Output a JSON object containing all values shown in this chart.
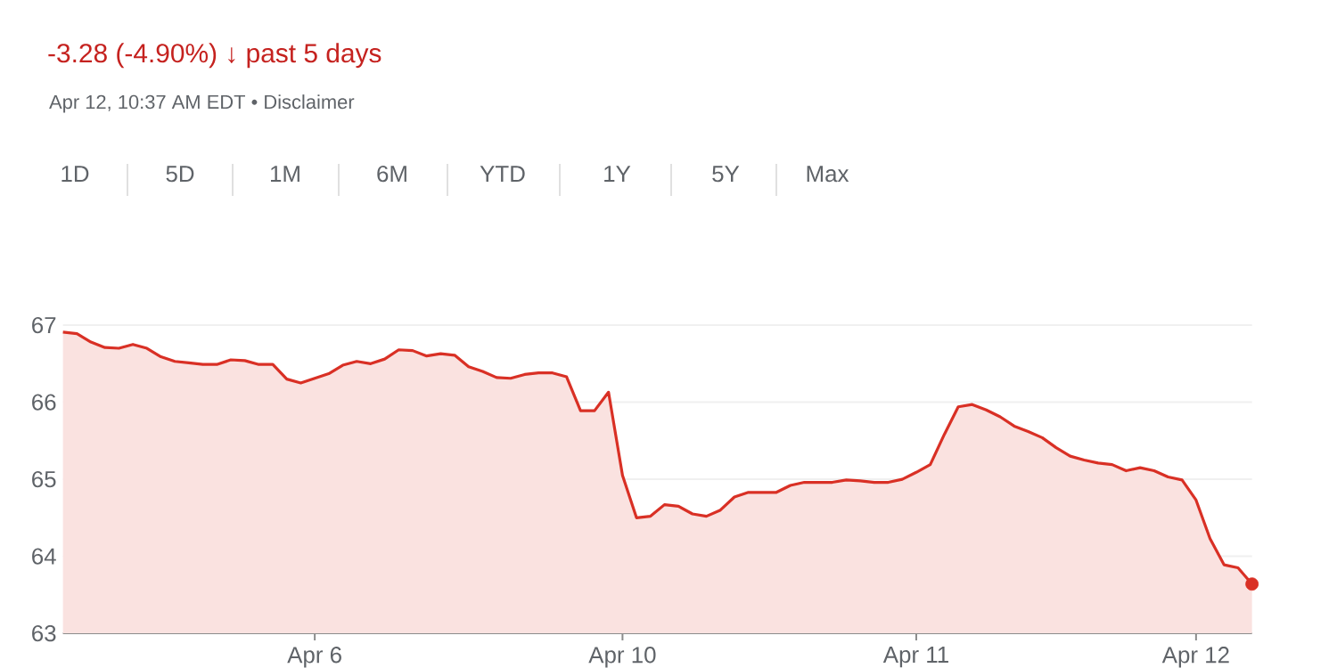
{
  "chart_data": {
    "type": "area",
    "subtitle": "-3.28 (-4.90%) ↓ past 5 days",
    "annotations": [
      "Apr 12, 10:37 AM EDT • Disclaimer",
      "1D",
      "5D",
      "1M",
      "6M",
      "YTD",
      "1Y",
      "5Y",
      "Max"
    ],
    "categories": [
      null,
      null,
      null,
      null,
      null,
      null,
      null,
      null,
      null,
      null,
      null,
      null,
      null,
      null,
      null,
      null,
      null,
      null,
      "Apr 6",
      null,
      null,
      null,
      null,
      null,
      null,
      null,
      null,
      null,
      null,
      null,
      null,
      null,
      null,
      null,
      null,
      null,
      null,
      null,
      null,
      null,
      "Apr 10",
      null,
      null,
      null,
      null,
      null,
      null,
      null,
      null,
      null,
      null,
      null,
      null,
      null,
      null,
      null,
      null,
      null,
      null,
      null,
      null,
      "Apr 11",
      null,
      null,
      null,
      null,
      null,
      null,
      null,
      null,
      null,
      null,
      null,
      null,
      null,
      null,
      null,
      null,
      null,
      null,
      null,
      "Apr 12",
      null,
      null,
      null,
      null
    ],
    "series": [
      {
        "color": "#d93025",
        "values": [
          66.91,
          66.89,
          66.78,
          66.71,
          66.7,
          66.75,
          66.7,
          66.59,
          66.53,
          66.51,
          66.49,
          66.49,
          66.55,
          66.54,
          66.49,
          66.49,
          66.3,
          66.25,
          66.31,
          66.37,
          66.48,
          66.53,
          66.5,
          66.56,
          66.68,
          66.67,
          66.6,
          66.63,
          66.61,
          66.46,
          66.4,
          66.32,
          66.31,
          66.36,
          66.38,
          66.38,
          66.33,
          65.89,
          65.89,
          66.13,
          65.05,
          64.5,
          64.52,
          64.67,
          64.65,
          64.55,
          64.52,
          64.6,
          64.77,
          64.83,
          64.83,
          64.83,
          64.92,
          64.96,
          64.96,
          64.96,
          64.99,
          64.98,
          64.96,
          64.96,
          65.0,
          65.09,
          65.19,
          65.58,
          65.94,
          65.97,
          65.9,
          65.81,
          65.69,
          65.62,
          65.54,
          65.41,
          65.3,
          65.25,
          65.21,
          65.19,
          65.11,
          65.15,
          65.11,
          65.03,
          64.99,
          64.73,
          64.23,
          63.89,
          63.85,
          63.64
        ]
      },
      {
        "type": "scatter",
        "marker": "circle",
        "color": "#d93025",
        "values": [
          null,
          null,
          null,
          null,
          null,
          null,
          null,
          null,
          null,
          null,
          null,
          null,
          null,
          null,
          null,
          null,
          null,
          null,
          null,
          null,
          null,
          null,
          null,
          null,
          null,
          null,
          null,
          null,
          null,
          null,
          null,
          null,
          null,
          null,
          null,
          null,
          null,
          null,
          null,
          null,
          null,
          null,
          null,
          null,
          null,
          null,
          null,
          null,
          null,
          null,
          null,
          null,
          null,
          null,
          null,
          null,
          null,
          null,
          null,
          null,
          null,
          null,
          null,
          null,
          null,
          null,
          null,
          null,
          null,
          null,
          null,
          null,
          null,
          null,
          null,
          null,
          null,
          null,
          null,
          null,
          null,
          null,
          null,
          null,
          null,
          63.64
        ]
      }
    ],
    "ylim": [
      63,
      67
    ],
    "yticks": [
      63,
      64,
      65,
      66,
      67
    ],
    "grid": "y"
  }
}
